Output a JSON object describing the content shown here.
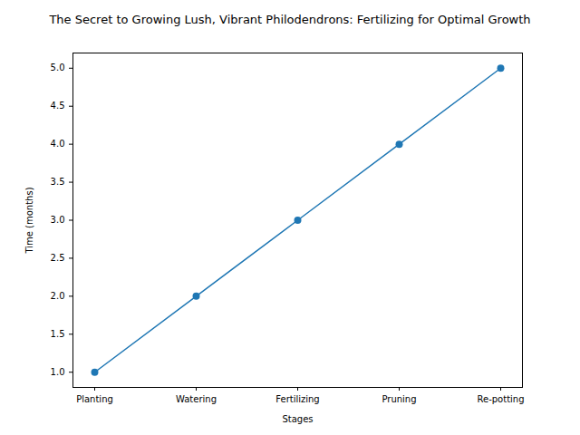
{
  "chart_data": {
    "type": "line",
    "title": "The Secret to Growing Lush, Vibrant Philodendrons: Fertilizing for Optimal Growth",
    "x_label": "Stages",
    "y_label": "Time (months)",
    "categories": [
      "Planting",
      "Watering",
      "Fertilizing",
      "Pruning",
      "Re-potting"
    ],
    "values": [
      1,
      2,
      3,
      4,
      5
    ],
    "color": "#1f77b4",
    "marker": "o",
    "grid": false,
    "ylim": [
      0.8,
      5.2
    ],
    "yticks": [
      {
        "value": 1,
        "label": "1.0"
      },
      {
        "value": 1.5,
        "label": "1.5"
      },
      {
        "value": 2,
        "label": "2.0"
      },
      {
        "value": 2.5,
        "label": "2.5"
      },
      {
        "value": 3,
        "label": "3.0"
      },
      {
        "value": 3.5,
        "label": "3.5"
      },
      {
        "value": 4,
        "label": "4.0"
      },
      {
        "value": 4.5,
        "label": "4.5"
      },
      {
        "value": 5,
        "label": "5.0"
      }
    ]
  }
}
